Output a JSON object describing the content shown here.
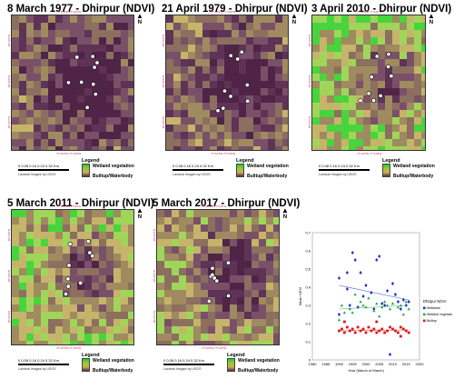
{
  "panels": [
    {
      "id": "p1977",
      "title": "8 March 1977 - Dhirpur (NDVI)",
      "seed": 11,
      "green": 0.12
    },
    {
      "id": "p1979",
      "title": "21 April 1979 - Dhirpur (NDVI)",
      "seed": 23,
      "green": 0.18
    },
    {
      "id": "p2010",
      "title": "3 April 2010 - Dhirpur (NDVI)",
      "seed": 37,
      "green": 0.55
    },
    {
      "id": "p2011",
      "title": "5 March 2011 - Dhirpur (NDVI)",
      "seed": 41,
      "green": 0.5
    },
    {
      "id": "p2017",
      "title": "5 March 2017 - Dhirpur (NDVI)",
      "seed": 53,
      "green": 0.35
    }
  ],
  "map_labels": {
    "lon_ticks": [
      "77°11'0\"E",
      "77°12'0\"E",
      "77°13'0\"E"
    ],
    "lat_ticks": [
      "28°43'0\"N",
      "28°42'0\"N",
      "28°41'0\"N"
    ],
    "north": "N"
  },
  "scale": {
    "ticks": "0 0.08 0.16 0.24 0.32",
    "unit": "Km"
  },
  "credit": "Landsat Images by USGS",
  "legend": {
    "title": "Legend",
    "high": "Wetland vegetation",
    "low": "Builtup/Waterbody"
  },
  "colors": {
    "dark": "#5a2c50",
    "mid": "#8a6a5a",
    "tan": "#c8b070",
    "green": "#3ed83e",
    "lime": "#9edc5a"
  },
  "chart_data": {
    "type": "scatter",
    "title": "",
    "xlabel": "Year (March of March)",
    "ylabel": "Mean NDVI",
    "xlim": [
      1980,
      2020
    ],
    "ylim": [
      0,
      0.7
    ],
    "xticks": [
      1980,
      1985,
      1990,
      1995,
      2000,
      2005,
      2010,
      2015,
      2020
    ],
    "yticks": [
      0,
      0.1,
      0.2,
      0.3,
      0.4,
      0.5,
      0.6,
      0.7
    ],
    "legend_title": "Dhirpur NDVI",
    "series": [
      {
        "name": "Wetlands",
        "color": "#1f2fd0",
        "marker": "diamond",
        "points": [
          [
            1990,
            0.45
          ],
          [
            1990,
            0.25
          ],
          [
            1993,
            0.48
          ],
          [
            1993,
            0.39
          ],
          [
            1994,
            0.3
          ],
          [
            1995,
            0.59
          ],
          [
            1996,
            0.55
          ],
          [
            1997,
            0.29
          ],
          [
            1998,
            0.48
          ],
          [
            1999,
            0.35
          ],
          [
            2000,
            0.41
          ],
          [
            2002,
            0.37
          ],
          [
            2003,
            0.28
          ],
          [
            2004,
            0.55
          ],
          [
            2005,
            0.57
          ],
          [
            2006,
            0.31
          ],
          [
            2007,
            0.3
          ],
          [
            2008,
            0.38
          ],
          [
            2010,
            0.42
          ],
          [
            2011,
            0.36
          ],
          [
            2012,
            0.32
          ],
          [
            2013,
            0.28
          ],
          [
            2014,
            0.33
          ],
          [
            2015,
            0.3
          ],
          [
            2016,
            0.32
          ],
          [
            2009,
            0.03
          ]
        ],
        "trend": [
          [
            1990,
            0.41
          ],
          [
            2016,
            0.33
          ]
        ]
      },
      {
        "name": "Wetland vegetation",
        "color": "#2aa84a",
        "marker": "triangle",
        "points": [
          [
            1990,
            0.22
          ],
          [
            1991,
            0.3
          ],
          [
            1992,
            0.26
          ],
          [
            1994,
            0.28
          ],
          [
            1995,
            0.26
          ],
          [
            1996,
            0.36
          ],
          [
            1998,
            0.32
          ],
          [
            1999,
            0.3
          ],
          [
            2000,
            0.29
          ],
          [
            2001,
            0.34
          ],
          [
            2003,
            0.27
          ],
          [
            2004,
            0.31
          ],
          [
            2005,
            0.24
          ],
          [
            2006,
            0.29
          ],
          [
            2007,
            0.32
          ],
          [
            2008,
            0.3
          ],
          [
            2009,
            0.28
          ],
          [
            2010,
            0.31
          ],
          [
            2012,
            0.29
          ],
          [
            2013,
            0.3
          ],
          [
            2014,
            0.25
          ],
          [
            2015,
            0.32
          ],
          [
            2016,
            0.28
          ]
        ],
        "trend": [
          [
            1990,
            0.28
          ],
          [
            2016,
            0.3
          ]
        ]
      },
      {
        "name": "Builtup",
        "color": "#e01818",
        "marker": "square",
        "points": [
          [
            1990,
            0.16
          ],
          [
            1991,
            0.17
          ],
          [
            1992,
            0.15
          ],
          [
            1993,
            0.18
          ],
          [
            1994,
            0.16
          ],
          [
            1995,
            0.17
          ],
          [
            1996,
            0.15
          ],
          [
            1997,
            0.18
          ],
          [
            1998,
            0.16
          ],
          [
            1999,
            0.17
          ],
          [
            2000,
            0.15
          ],
          [
            2001,
            0.18
          ],
          [
            2002,
            0.16
          ],
          [
            2003,
            0.17
          ],
          [
            2004,
            0.15
          ],
          [
            2005,
            0.16
          ],
          [
            2006,
            0.17
          ],
          [
            2007,
            0.15
          ],
          [
            2008,
            0.16
          ],
          [
            2009,
            0.18
          ],
          [
            2010,
            0.17
          ],
          [
            2011,
            0.16
          ],
          [
            2012,
            0.15
          ],
          [
            2013,
            0.18
          ],
          [
            2014,
            0.17
          ],
          [
            2015,
            0.16
          ],
          [
            2016,
            0.15
          ],
          [
            1992,
            0.21
          ],
          [
            2004,
            0.21
          ],
          [
            2013,
            0.13
          ]
        ],
        "trend": [
          [
            1990,
            0.16
          ],
          [
            2016,
            0.165
          ]
        ]
      }
    ]
  }
}
